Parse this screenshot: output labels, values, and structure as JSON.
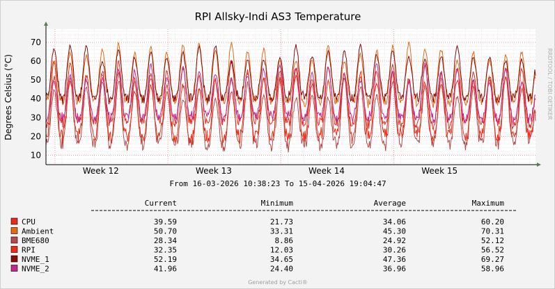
{
  "chart_data": {
    "type": "line",
    "title": "RPI Allsky-Indi AS3 Temperature",
    "ylabel": "Degrees Celsius (°C)",
    "ylim": [
      5,
      77
    ],
    "yticks": [
      10,
      20,
      30,
      40,
      50,
      60,
      70
    ],
    "x_week_labels": [
      "Week 12",
      "Week 13",
      "Week 14",
      "Week 15"
    ],
    "x_range": {
      "from": "16-03-2026 10:38:23",
      "to": "15-04-2026 19:04:47"
    },
    "x_range_text": "From 16-03-2026 10:38:23 To 15-04-2026 19:04:47",
    "side_label": "RRDTOOL / TOBI OETIKER",
    "grid": true,
    "legend_columns": [
      "Current",
      "Minimum",
      "Average",
      "Maximum"
    ],
    "series": [
      {
        "name": "CPU",
        "color": "#e8291c",
        "current": "39.59",
        "minimum": "21.73",
        "average": "34.06",
        "maximum": "60.20"
      },
      {
        "name": "Ambient",
        "color": "#e56a15",
        "current": "50.70",
        "minimum": "33.31",
        "average": "45.30",
        "maximum": "70.31"
      },
      {
        "name": "BME680",
        "color": "#b64a4a",
        "current": "28.34",
        "minimum": "8.86",
        "average": "24.92",
        "maximum": "52.12"
      },
      {
        "name": "RPI",
        "color": "#ee2b12",
        "current": "32.35",
        "minimum": "12.03",
        "average": "30.26",
        "maximum": "56.52"
      },
      {
        "name": "NVME_1",
        "color": "#8a0a0a",
        "current": "52.19",
        "minimum": "34.65",
        "average": "47.36",
        "maximum": "69.27"
      },
      {
        "name": "NVME_2",
        "color": "#c2278c",
        "current": "41.96",
        "minimum": "24.40",
        "average": "36.96",
        "maximum": "58.96"
      }
    ]
  },
  "footer": "Generated by Cacti®"
}
